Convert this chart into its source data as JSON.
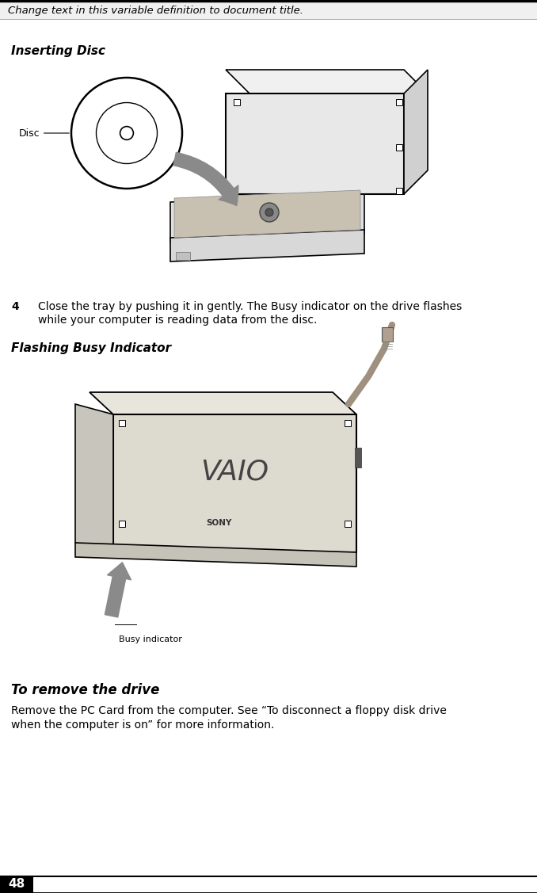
{
  "header_text": "Change text in this variable definition to document title.",
  "header_fontsize": 9.5,
  "section1_title": "Inserting Disc",
  "section1_title_fontsize": 11,
  "step4_number": "4",
  "step4_text_line1": "Close the tray by pushing it in gently. The Busy indicator on the drive flashes",
  "step4_text_line2": "while your computer is reading data from the disc.",
  "step4_fontsize": 10,
  "section2_title": "Flashing Busy Indicator",
  "section2_title_fontsize": 11,
  "section3_title": "To remove the drive",
  "section3_title_fontsize": 12,
  "section3_text_line1": "Remove the PC Card from the computer. See “To disconnect a floppy disk drive",
  "section3_text_line2": "when the computer is on” for more information.",
  "section3_fontsize": 10,
  "page_number": "48",
  "page_num_fontsize": 11,
  "bg_color": "#ffffff",
  "text_color": "#000000",
  "disc_label": "Disc",
  "busy_label": "Busy indicator"
}
